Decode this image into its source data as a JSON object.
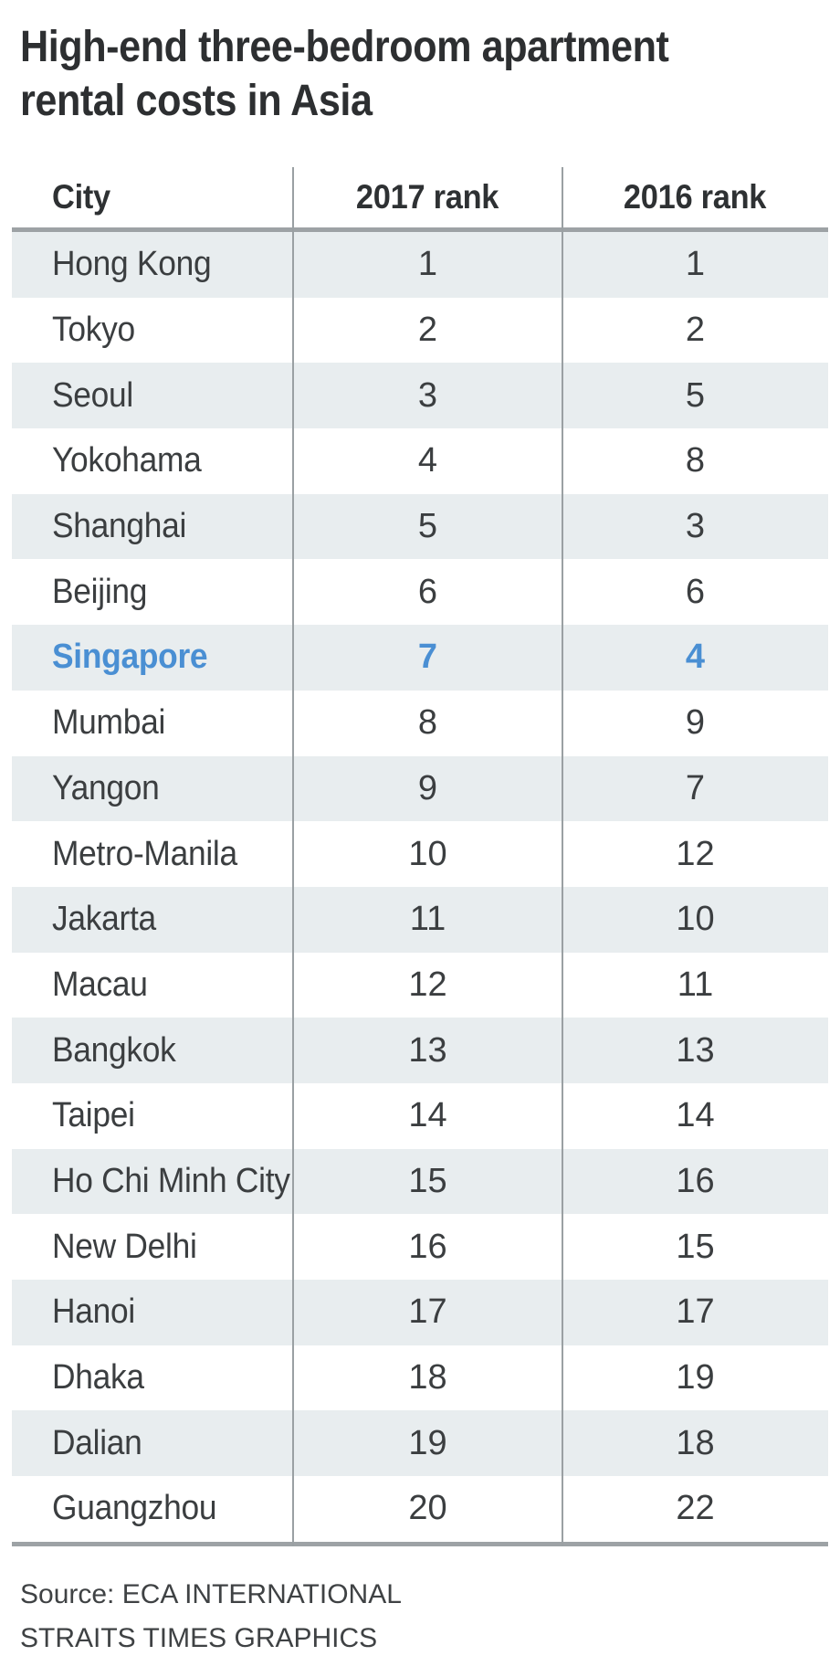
{
  "title": {
    "line1": "High-end three-bedroom apartment",
    "line2": "rental costs in Asia"
  },
  "table": {
    "columns": [
      "City",
      "2017 rank",
      "2016 rank"
    ],
    "rows": [
      {
        "city": "Hong Kong",
        "rank_2017": "1",
        "rank_2016": "1",
        "highlight": false
      },
      {
        "city": "Tokyo",
        "rank_2017": "2",
        "rank_2016": "2",
        "highlight": false
      },
      {
        "city": "Seoul",
        "rank_2017": "3",
        "rank_2016": "5",
        "highlight": false
      },
      {
        "city": "Yokohama",
        "rank_2017": "4",
        "rank_2016": "8",
        "highlight": false
      },
      {
        "city": "Shanghai",
        "rank_2017": "5",
        "rank_2016": "3",
        "highlight": false
      },
      {
        "city": "Beijing",
        "rank_2017": "6",
        "rank_2016": "6",
        "highlight": false
      },
      {
        "city": "Singapore",
        "rank_2017": "7",
        "rank_2016": "4",
        "highlight": true
      },
      {
        "city": "Mumbai",
        "rank_2017": "8",
        "rank_2016": "9",
        "highlight": false
      },
      {
        "city": "Yangon",
        "rank_2017": "9",
        "rank_2016": "7",
        "highlight": false
      },
      {
        "city": "Metro-Manila",
        "rank_2017": "10",
        "rank_2016": "12",
        "highlight": false
      },
      {
        "city": "Jakarta",
        "rank_2017": "11",
        "rank_2016": "10",
        "highlight": false
      },
      {
        "city": "Macau",
        "rank_2017": "12",
        "rank_2016": "11",
        "highlight": false
      },
      {
        "city": "Bangkok",
        "rank_2017": "13",
        "rank_2016": "13",
        "highlight": false
      },
      {
        "city": "Taipei",
        "rank_2017": "14",
        "rank_2016": "14",
        "highlight": false
      },
      {
        "city": "Ho Chi Minh City",
        "rank_2017": "15",
        "rank_2016": "16",
        "highlight": false
      },
      {
        "city": "New Delhi",
        "rank_2017": "16",
        "rank_2016": "15",
        "highlight": false
      },
      {
        "city": "Hanoi",
        "rank_2017": "17",
        "rank_2016": "17",
        "highlight": false
      },
      {
        "city": "Dhaka",
        "rank_2017": "18",
        "rank_2016": "19",
        "highlight": false
      },
      {
        "city": "Dalian",
        "rank_2017": "19",
        "rank_2016": "18",
        "highlight": false
      },
      {
        "city": "Guangzhou",
        "rank_2017": "20",
        "rank_2016": "22",
        "highlight": false
      }
    ]
  },
  "source": {
    "line1": "Source: ECA INTERNATIONAL",
    "line2": "STRAITS TIMES GRAPHICS"
  },
  "colors": {
    "highlight_blue": "#4a8fd3",
    "row_band_gray": "#e8edef",
    "rule_gray": "#9da2a5",
    "divider_gray": "#9aa0a3",
    "text_dark": "#2d2f31"
  },
  "chart_data": {
    "type": "table",
    "title": "High-end three-bedroom apartment rental costs in Asia",
    "columns": [
      "City",
      "2017 rank",
      "2016 rank"
    ],
    "rows": [
      [
        "Hong Kong",
        1,
        1
      ],
      [
        "Tokyo",
        2,
        2
      ],
      [
        "Seoul",
        3,
        5
      ],
      [
        "Yokohama",
        4,
        8
      ],
      [
        "Shanghai",
        5,
        3
      ],
      [
        "Beijing",
        6,
        6
      ],
      [
        "Singapore",
        7,
        4
      ],
      [
        "Mumbai",
        8,
        9
      ],
      [
        "Yangon",
        9,
        7
      ],
      [
        "Metro-Manila",
        10,
        12
      ],
      [
        "Jakarta",
        11,
        10
      ],
      [
        "Macau",
        12,
        11
      ],
      [
        "Bangkok",
        13,
        13
      ],
      [
        "Taipei",
        14,
        14
      ],
      [
        "Ho Chi Minh City",
        15,
        16
      ],
      [
        "New Delhi",
        16,
        15
      ],
      [
        "Hanoi",
        17,
        17
      ],
      [
        "Dhaka",
        18,
        19
      ],
      [
        "Dalian",
        19,
        18
      ],
      [
        "Guangzhou",
        20,
        22
      ]
    ],
    "highlighted_row": "Singapore",
    "source": "ECA INTERNATIONAL",
    "credit": "STRAITS TIMES GRAPHICS",
    "layout": {
      "row_striping": true,
      "stripe_first_row": true,
      "column_dividers": true
    }
  }
}
